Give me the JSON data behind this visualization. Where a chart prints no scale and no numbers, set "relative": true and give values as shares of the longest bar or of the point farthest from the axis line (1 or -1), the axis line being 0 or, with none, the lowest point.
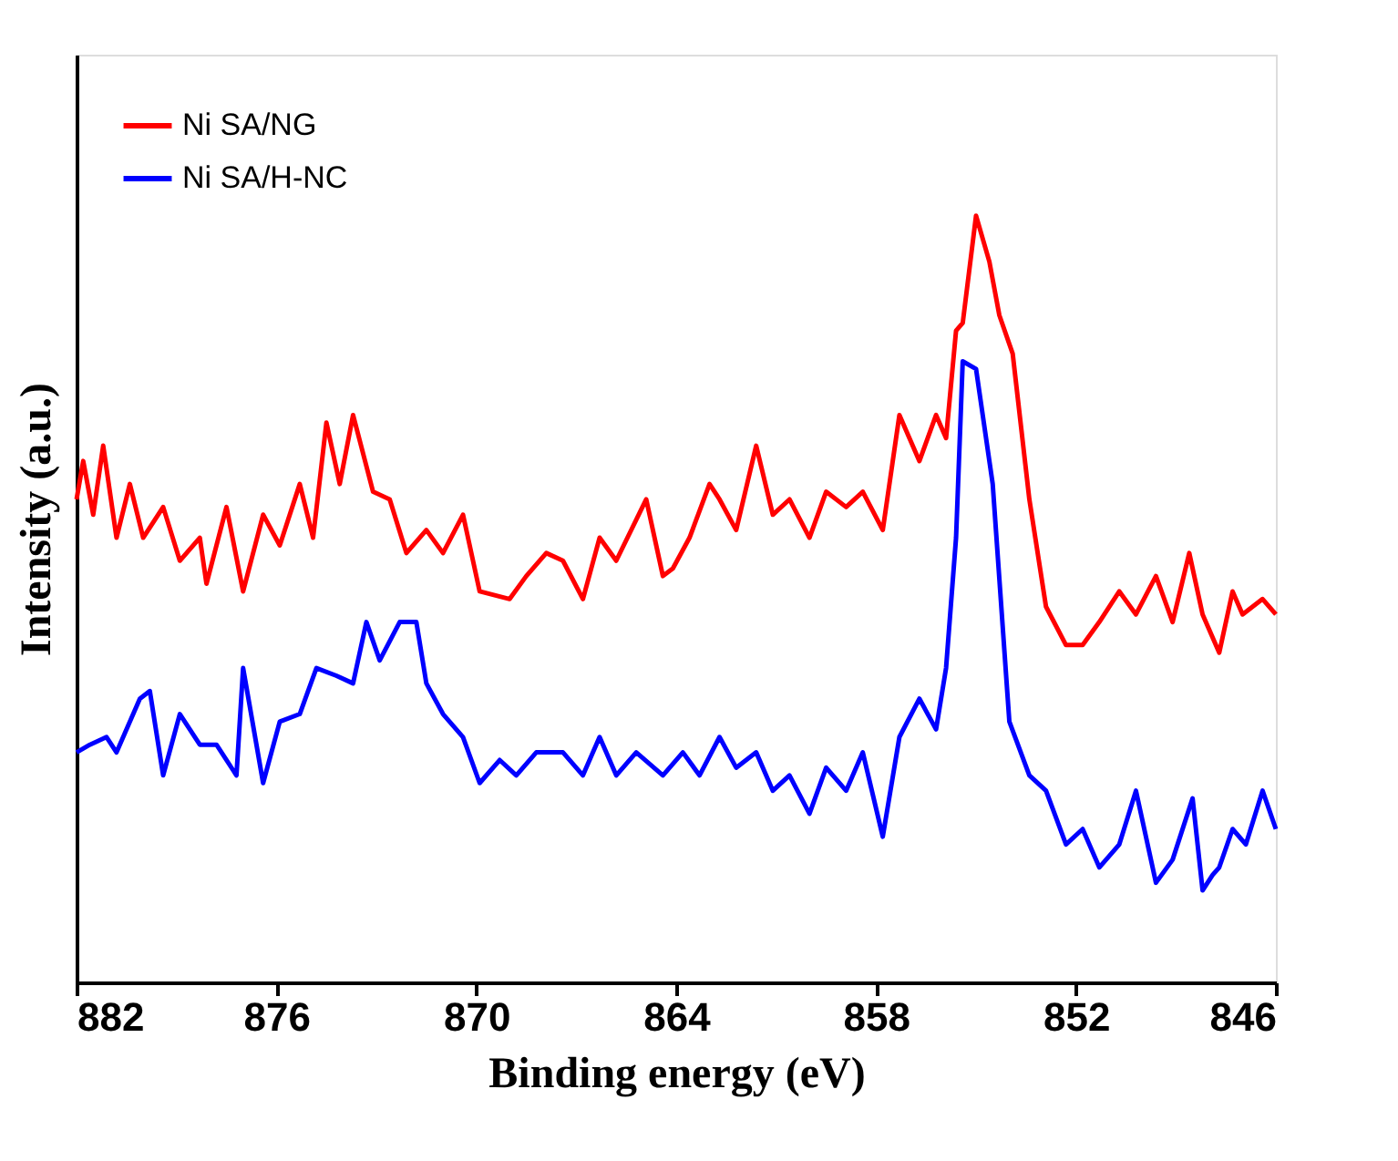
{
  "chart_data": {
    "type": "line",
    "xlabel": "Binding energy (eV)",
    "ylabel": "Intensity (a.u.)",
    "relative": true,
    "xlim": [
      882,
      846
    ],
    "xticks": [
      882,
      876,
      870,
      864,
      858,
      852,
      846
    ],
    "grid": false,
    "legend": "top left",
    "marker": "none",
    "line_style": "solid",
    "series": [
      {
        "name": "Ni SA/NG",
        "color": "#ff0000",
        "x": [
          882.0,
          881.8,
          881.5,
          881.2,
          880.8,
          880.4,
          880.0,
          879.4,
          878.9,
          878.3,
          878.1,
          877.5,
          877.0,
          876.4,
          875.9,
          875.3,
          874.9,
          874.5,
          874.1,
          873.7,
          873.1,
          872.6,
          872.1,
          871.5,
          871.0,
          870.4,
          869.9,
          869.0,
          868.5,
          867.9,
          867.4,
          866.8,
          866.3,
          865.8,
          864.9,
          864.4,
          864.1,
          863.6,
          863.0,
          862.7,
          862.2,
          861.6,
          861.1,
          860.6,
          860.0,
          859.5,
          858.9,
          858.4,
          857.8,
          857.3,
          856.7,
          856.2,
          855.9,
          855.6,
          855.4,
          855.0,
          854.6,
          854.3,
          853.9,
          853.4,
          852.9,
          852.3,
          851.8,
          851.3,
          850.7,
          850.2,
          849.6,
          849.1,
          848.6,
          848.2,
          847.7,
          847.3,
          847.0,
          846.4,
          846.0
        ],
        "values": [
          0.63,
          0.68,
          0.61,
          0.7,
          0.58,
          0.65,
          0.58,
          0.62,
          0.55,
          0.58,
          0.52,
          0.62,
          0.51,
          0.61,
          0.57,
          0.65,
          0.58,
          0.73,
          0.65,
          0.74,
          0.64,
          0.63,
          0.56,
          0.59,
          0.56,
          0.61,
          0.51,
          0.5,
          0.53,
          0.56,
          0.55,
          0.5,
          0.58,
          0.55,
          0.63,
          0.53,
          0.54,
          0.58,
          0.65,
          0.63,
          0.59,
          0.7,
          0.61,
          0.63,
          0.58,
          0.64,
          0.62,
          0.64,
          0.59,
          0.74,
          0.68,
          0.74,
          0.71,
          0.85,
          0.86,
          1.0,
          0.94,
          0.87,
          0.82,
          0.63,
          0.49,
          0.44,
          0.44,
          0.47,
          0.51,
          0.48,
          0.53,
          0.47,
          0.56,
          0.48,
          0.43,
          0.51,
          0.48,
          0.5,
          0.48
        ]
      },
      {
        "name": "Ni SA/H-NC",
        "color": "#0000ff",
        "x": [
          882.0,
          881.6,
          881.1,
          880.8,
          880.1,
          879.8,
          879.4,
          878.9,
          878.3,
          877.8,
          877.2,
          877.0,
          876.4,
          875.9,
          875.3,
          874.8,
          874.2,
          873.7,
          873.3,
          872.9,
          872.3,
          871.8,
          871.5,
          871.0,
          870.4,
          869.9,
          869.3,
          868.8,
          868.2,
          867.4,
          866.8,
          866.3,
          865.8,
          865.2,
          864.4,
          863.8,
          863.3,
          862.7,
          862.2,
          861.6,
          861.1,
          860.6,
          860.0,
          859.5,
          858.9,
          858.4,
          857.8,
          857.3,
          856.7,
          856.2,
          855.9,
          855.6,
          855.4,
          855.0,
          854.5,
          854.0,
          853.4,
          852.9,
          852.3,
          851.8,
          851.3,
          850.7,
          850.2,
          849.6,
          849.1,
          848.5,
          848.2,
          847.9,
          847.7,
          847.3,
          846.9,
          846.4,
          846.0
        ],
        "values": [
          0.3,
          0.31,
          0.32,
          0.3,
          0.37,
          0.38,
          0.27,
          0.35,
          0.31,
          0.31,
          0.27,
          0.41,
          0.26,
          0.34,
          0.35,
          0.41,
          0.4,
          0.39,
          0.47,
          0.42,
          0.47,
          0.47,
          0.39,
          0.35,
          0.32,
          0.26,
          0.29,
          0.27,
          0.3,
          0.3,
          0.27,
          0.32,
          0.27,
          0.3,
          0.27,
          0.3,
          0.27,
          0.32,
          0.28,
          0.3,
          0.25,
          0.27,
          0.22,
          0.28,
          0.25,
          0.3,
          0.19,
          0.32,
          0.37,
          0.33,
          0.41,
          0.58,
          0.81,
          0.8,
          0.65,
          0.34,
          0.27,
          0.25,
          0.18,
          0.2,
          0.15,
          0.18,
          0.25,
          0.13,
          0.16,
          0.24,
          0.12,
          0.14,
          0.15,
          0.2,
          0.18,
          0.25,
          0.2
        ]
      }
    ]
  }
}
